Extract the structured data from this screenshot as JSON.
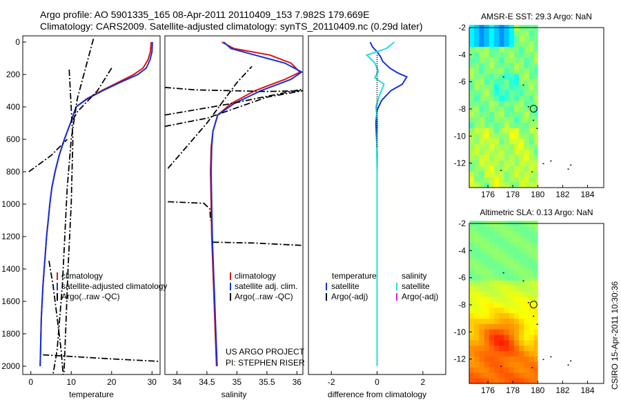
{
  "header": {
    "line1": "Argo profile: AO 5901335_165 08-Apr-2011 20110409_153 7.982S 179.669E",
    "line2": "Climatology: CARS2009. Satellite-adjusted climatology: synTS_20110409.nc (0.29d later)"
  },
  "footer": {
    "stamp": "CSIRO 15-Apr-2011 10:30:36"
  },
  "colors": {
    "climatology": "#dd1111",
    "satellite": "#1030dd",
    "argo": "#000000",
    "salinity_satellite": "#22dddd",
    "salinity_argo": "#dd22dd"
  },
  "chart_data": [
    {
      "type": "line",
      "xlabel": "temperature",
      "ylim": [
        2050,
        0
      ],
      "xlim": [
        -2,
        32
      ],
      "yticks": [
        0,
        200,
        400,
        600,
        800,
        1000,
        1200,
        1400,
        1600,
        1800,
        2000
      ],
      "xticks": [
        0,
        10,
        20,
        30
      ],
      "legend": [
        "climatology",
        "satellite-adjusted climatology",
        "Argo(..raw -QC)"
      ],
      "series": [
        {
          "name": "climatology",
          "color": "#dd1111",
          "style": "solid",
          "points": [
            [
              29.8,
              0
            ],
            [
              29.6,
              60
            ],
            [
              29.0,
              110
            ],
            [
              27.8,
              160
            ],
            [
              25.5,
              200
            ],
            [
              21.5,
              250
            ],
            [
              17.5,
              300
            ],
            [
              13.8,
              350
            ],
            [
              11.2,
              400
            ],
            [
              9.8,
              500
            ],
            [
              8.3,
              600
            ],
            [
              7.0,
              700
            ],
            [
              6.0,
              800
            ],
            [
              5.2,
              900
            ],
            [
              4.7,
              1000
            ],
            [
              4.3,
              1100
            ],
            [
              3.9,
              1200
            ],
            [
              3.6,
              1300
            ],
            [
              3.3,
              1400
            ],
            [
              3.0,
              1500
            ],
            [
              2.8,
              1600
            ],
            [
              2.6,
              1700
            ],
            [
              2.5,
              1800
            ],
            [
              2.4,
              1900
            ],
            [
              2.3,
              2000
            ]
          ]
        },
        {
          "name": "satellite-adjusted climatology",
          "color": "#1030dd",
          "style": "solid",
          "points": [
            [
              30.1,
              0
            ],
            [
              30.0,
              60
            ],
            [
              29.5,
              110
            ],
            [
              28.6,
              160
            ],
            [
              26.5,
              200
            ],
            [
              22.0,
              250
            ],
            [
              17.8,
              300
            ],
            [
              14.0,
              350
            ],
            [
              11.2,
              400
            ],
            [
              9.8,
              500
            ],
            [
              8.3,
              600
            ],
            [
              7.0,
              700
            ],
            [
              6.0,
              800
            ],
            [
              5.2,
              900
            ],
            [
              4.7,
              1000
            ],
            [
              4.3,
              1100
            ],
            [
              3.9,
              1200
            ],
            [
              3.6,
              1300
            ],
            [
              3.3,
              1400
            ],
            [
              3.0,
              1500
            ],
            [
              2.8,
              1600
            ],
            [
              2.6,
              1700
            ],
            [
              2.5,
              1800
            ],
            [
              2.4,
              1900
            ],
            [
              2.3,
              2000
            ]
          ]
        },
        {
          "name": "Argo(..raw -QC)",
          "color": "#000000",
          "style": "dashdot",
          "points": [
            [
              15.5,
              -20
            ],
            [
              11.5,
              350
            ],
            [
              10.0,
              600
            ],
            [
              9.0,
              900
            ],
            [
              7.8,
              1500
            ],
            [
              6.5,
              1900
            ],
            [
              5.5,
              2050
            ]
          ]
        },
        {
          "name": "",
          "color": "#000000",
          "style": "dashdot",
          "points": [
            [
              9.5,
              170
            ],
            [
              10.4,
              600
            ],
            [
              10.0,
              1000
            ],
            [
              9.2,
              1400
            ],
            [
              8.6,
              1800
            ],
            [
              8.2,
              2050
            ]
          ]
        },
        {
          "name": "",
          "color": "#000000",
          "style": "dashdot",
          "points": [
            [
              20.0,
              160
            ],
            [
              16.5,
              300
            ],
            [
              11.5,
              430
            ],
            [
              10.0,
              500
            ]
          ]
        },
        {
          "name": "",
          "color": "#000000",
          "style": "dashdot",
          "points": [
            [
              -0.5,
              800
            ],
            [
              5.0,
              700
            ],
            [
              9.0,
              600
            ]
          ]
        },
        {
          "name": "",
          "color": "#000000",
          "style": "dashdot",
          "points": [
            [
              4.5,
              1350
            ],
            [
              5.5,
              1500
            ],
            [
              6.5,
              1700
            ],
            [
              7.5,
              1900
            ],
            [
              8.0,
              2050
            ]
          ]
        },
        {
          "name": "",
          "color": "#000000",
          "style": "dashdot",
          "points": [
            [
              3.0,
              1930
            ],
            [
              10.0,
              1940
            ],
            [
              20.0,
              1955
            ],
            [
              32.0,
              1970
            ]
          ]
        }
      ]
    },
    {
      "type": "line",
      "xlabel": "salinity",
      "ylim": [
        2050,
        0
      ],
      "xlim": [
        33.8,
        36.1
      ],
      "xticks": [
        34,
        34.5,
        35,
        35.5,
        36
      ],
      "legend": [
        "climatology",
        "satellite adj. clim.",
        "Argo(..raw -QC)"
      ],
      "annotation": [
        "US ARGO PROJECT",
        "PI: STEPHEN RISER"
      ],
      "series": [
        {
          "name": "climatology",
          "color": "#dd1111",
          "style": "solid",
          "points": [
            [
              34.75,
              0
            ],
            [
              34.95,
              40
            ],
            [
              35.55,
              80
            ],
            [
              35.9,
              130
            ],
            [
              36.05,
              185
            ],
            [
              35.8,
              230
            ],
            [
              35.3,
              300
            ],
            [
              34.9,
              380
            ],
            [
              34.68,
              450
            ],
            [
              34.6,
              550
            ],
            [
              34.57,
              650
            ],
            [
              34.56,
              800
            ],
            [
              34.57,
              1000
            ],
            [
              34.58,
              1200
            ],
            [
              34.6,
              1400
            ],
            [
              34.62,
              1600
            ],
            [
              34.64,
              1800
            ],
            [
              34.66,
              2000
            ]
          ]
        },
        {
          "name": "satellite adj. clim.",
          "color": "#1030dd",
          "style": "solid",
          "points": [
            [
              34.78,
              0
            ],
            [
              34.9,
              40
            ],
            [
              35.3,
              80
            ],
            [
              35.8,
              130
            ],
            [
              36.08,
              185
            ],
            [
              35.9,
              230
            ],
            [
              35.4,
              300
            ],
            [
              34.95,
              380
            ],
            [
              34.68,
              450
            ],
            [
              34.6,
              550
            ],
            [
              34.58,
              650
            ],
            [
              34.57,
              800
            ],
            [
              34.58,
              1000
            ],
            [
              34.59,
              1200
            ],
            [
              34.61,
              1400
            ],
            [
              34.63,
              1600
            ],
            [
              34.65,
              1800
            ],
            [
              34.67,
              2000
            ]
          ]
        },
        {
          "name": "Argo(..raw -QC)",
          "color": "#000000",
          "style": "dashdot",
          "points": [
            [
              33.8,
              280
            ],
            [
              34.3,
              295
            ],
            [
              35.5,
              305
            ],
            [
              36.1,
              300
            ]
          ]
        },
        {
          "name": "",
          "color": "#000000",
          "style": "dashdot",
          "points": [
            [
              33.8,
              450
            ],
            [
              34.9,
              380
            ],
            [
              36.1,
              290
            ]
          ]
        },
        {
          "name": "",
          "color": "#000000",
          "style": "dashdot",
          "points": [
            [
              33.8,
              520
            ],
            [
              34.5,
              470
            ],
            [
              35.5,
              340
            ],
            [
              36.1,
              300
            ]
          ]
        },
        {
          "name": "",
          "color": "#000000",
          "style": "dashdot",
          "points": [
            [
              33.85,
              780
            ],
            [
              34.5,
              500
            ],
            [
              35.0,
              250
            ],
            [
              35.25,
              150
            ]
          ]
        },
        {
          "name": "",
          "color": "#000000",
          "style": "dashdot",
          "points": [
            [
              33.85,
              985
            ],
            [
              34.45,
              995
            ],
            [
              34.55,
              1030
            ],
            [
              34.56,
              1100
            ]
          ]
        },
        {
          "name": "",
          "color": "#000000",
          "style": "dashdot",
          "points": [
            [
              34.6,
              1235
            ],
            [
              35.3,
              1240
            ],
            [
              36.1,
              1255
            ]
          ]
        }
      ]
    },
    {
      "type": "line",
      "xlabel": "difference from climatology",
      "ylim": [
        2050,
        0
      ],
      "xlim": [
        -3,
        3
      ],
      "xticks": [
        -2,
        0,
        2
      ],
      "legend_left": [
        "temperature",
        "satellite",
        "Argo(-adj)"
      ],
      "legend_right": [
        "salinity",
        "satellite",
        "Argo(-adj)"
      ],
      "series": [
        {
          "name": "temperature satellite",
          "color": "#1030dd",
          "style": "solid",
          "points": [
            [
              -0.3,
              0
            ],
            [
              -0.2,
              30
            ],
            [
              0.0,
              60
            ],
            [
              0.15,
              90
            ],
            [
              0.25,
              120
            ],
            [
              0.55,
              160
            ],
            [
              0.9,
              190
            ],
            [
              1.3,
              215
            ],
            [
              1.1,
              260
            ],
            [
              0.6,
              300
            ],
            [
              0.2,
              360
            ],
            [
              0.0,
              420
            ],
            [
              -0.05,
              500
            ],
            [
              -0.02,
              600
            ],
            [
              0.0,
              700
            ],
            [
              0.0,
              1000
            ],
            [
              0.0,
              2000
            ]
          ]
        },
        {
          "name": "salinity satellite",
          "color": "#22dddd",
          "style": "solid",
          "points": [
            [
              0.75,
              0
            ],
            [
              0.4,
              40
            ],
            [
              -0.45,
              80
            ],
            [
              -0.1,
              130
            ],
            [
              0.05,
              180
            ],
            [
              -0.1,
              220
            ],
            [
              0.3,
              260
            ],
            [
              0.1,
              330
            ],
            [
              -0.05,
              400
            ],
            [
              0.02,
              500
            ],
            [
              -0.02,
              650
            ],
            [
              0.0,
              800
            ],
            [
              0.0,
              1100
            ],
            [
              0.0,
              2000
            ]
          ]
        },
        {
          "name": "",
          "color": "#000000",
          "style": "dotted",
          "points": [
            [
              0,
              80
            ],
            [
              0,
              650
            ]
          ]
        }
      ]
    },
    {
      "type": "heatmap",
      "title": "AMSR-E SST: 29.3 Argo: NaN",
      "xlim": [
        174.5,
        185.3
      ],
      "ylim": [
        -13.8,
        -2
      ],
      "xticks": [
        176,
        178,
        180,
        182,
        184
      ],
      "yticks": [
        -2,
        -4,
        -6,
        -8,
        -10,
        -12
      ],
      "colormap": "jet",
      "marker": {
        "x": 179.669,
        "y": -7.982
      }
    },
    {
      "type": "heatmap",
      "title": "Altimetric SLA: 0.13 Argo: NaN",
      "xlim": [
        174.5,
        185.3
      ],
      "ylim": [
        -13.8,
        -2
      ],
      "xticks": [
        176,
        178,
        180,
        182,
        184
      ],
      "yticks": [
        -2,
        -4,
        -6,
        -8,
        -10,
        -12
      ],
      "colormap": "jet",
      "marker": {
        "x": 179.669,
        "y": -7.982
      }
    }
  ]
}
